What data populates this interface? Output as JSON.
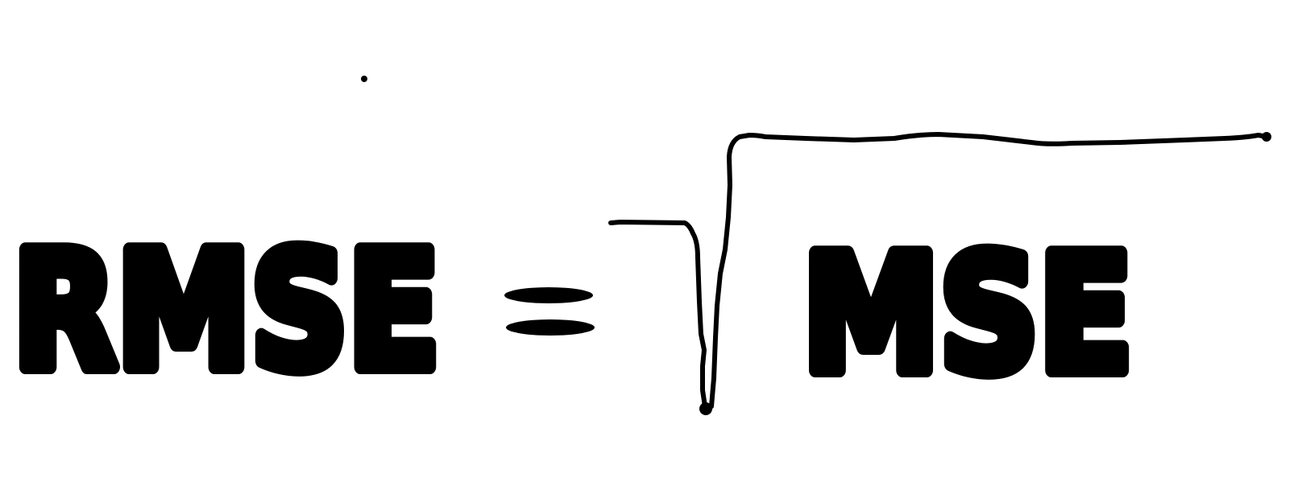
{
  "formula": {
    "lhs": "RMSE",
    "operator": "=",
    "radicand": "MSE"
  },
  "colors": {
    "ink": "#000000",
    "background": "#ffffff"
  }
}
